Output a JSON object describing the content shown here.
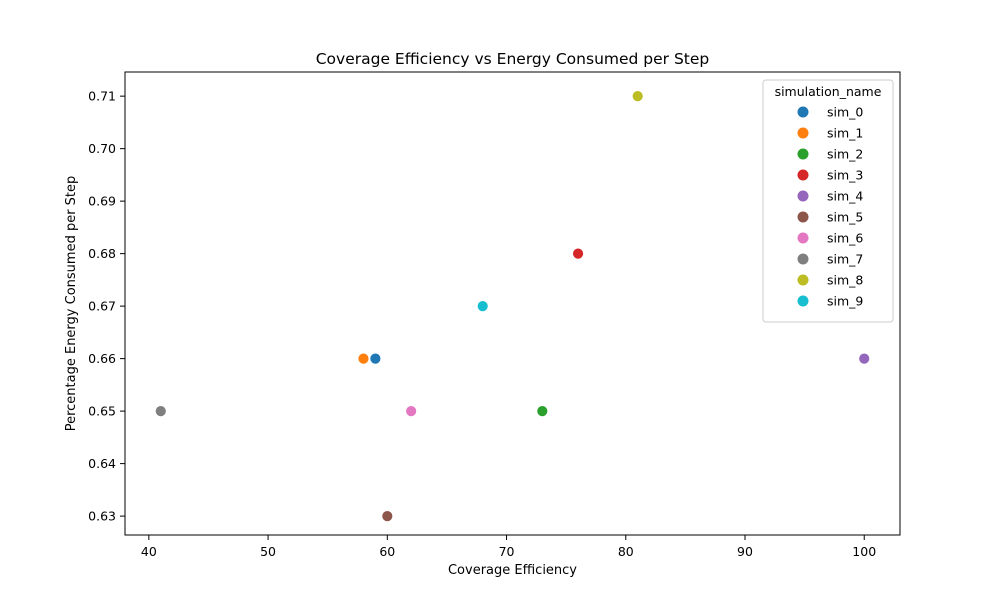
{
  "chart_data": {
    "type": "scatter",
    "title": "Coverage Efficiency vs Energy Consumed per Step",
    "xlabel": "Coverage Efficiency",
    "ylabel": "Percentage Energy Consumed per Step",
    "xlim": [
      38,
      103
    ],
    "ylim": [
      0.6264,
      0.7146
    ],
    "xticks": [
      40,
      50,
      60,
      70,
      80,
      90,
      100
    ],
    "yticks": [
      0.63,
      0.64,
      0.65,
      0.66,
      0.67,
      0.68,
      0.69,
      0.7,
      0.71
    ],
    "ytick_labels": [
      "0.63",
      "0.64",
      "0.65",
      "0.66",
      "0.67",
      "0.68",
      "0.69",
      "0.70",
      "0.71"
    ],
    "grid": false,
    "legend": {
      "title": "simulation_name",
      "position": "top-right"
    },
    "series": [
      {
        "name": "sim_0",
        "color": "#1f77b4",
        "x": 59,
        "y": 0.66
      },
      {
        "name": "sim_1",
        "color": "#ff7f0e",
        "x": 58,
        "y": 0.66
      },
      {
        "name": "sim_2",
        "color": "#2ca02c",
        "x": 73,
        "y": 0.65
      },
      {
        "name": "sim_3",
        "color": "#d62728",
        "x": 76,
        "y": 0.68
      },
      {
        "name": "sim_4",
        "color": "#9467bd",
        "x": 100,
        "y": 0.66
      },
      {
        "name": "sim_5",
        "color": "#8c564b",
        "x": 60,
        "y": 0.63
      },
      {
        "name": "sim_6",
        "color": "#e377c2",
        "x": 62,
        "y": 0.65
      },
      {
        "name": "sim_7",
        "color": "#7f7f7f",
        "x": 41,
        "y": 0.65
      },
      {
        "name": "sim_8",
        "color": "#bcbd22",
        "x": 81,
        "y": 0.71
      },
      {
        "name": "sim_9",
        "color": "#17becf",
        "x": 68,
        "y": 0.67
      }
    ]
  }
}
